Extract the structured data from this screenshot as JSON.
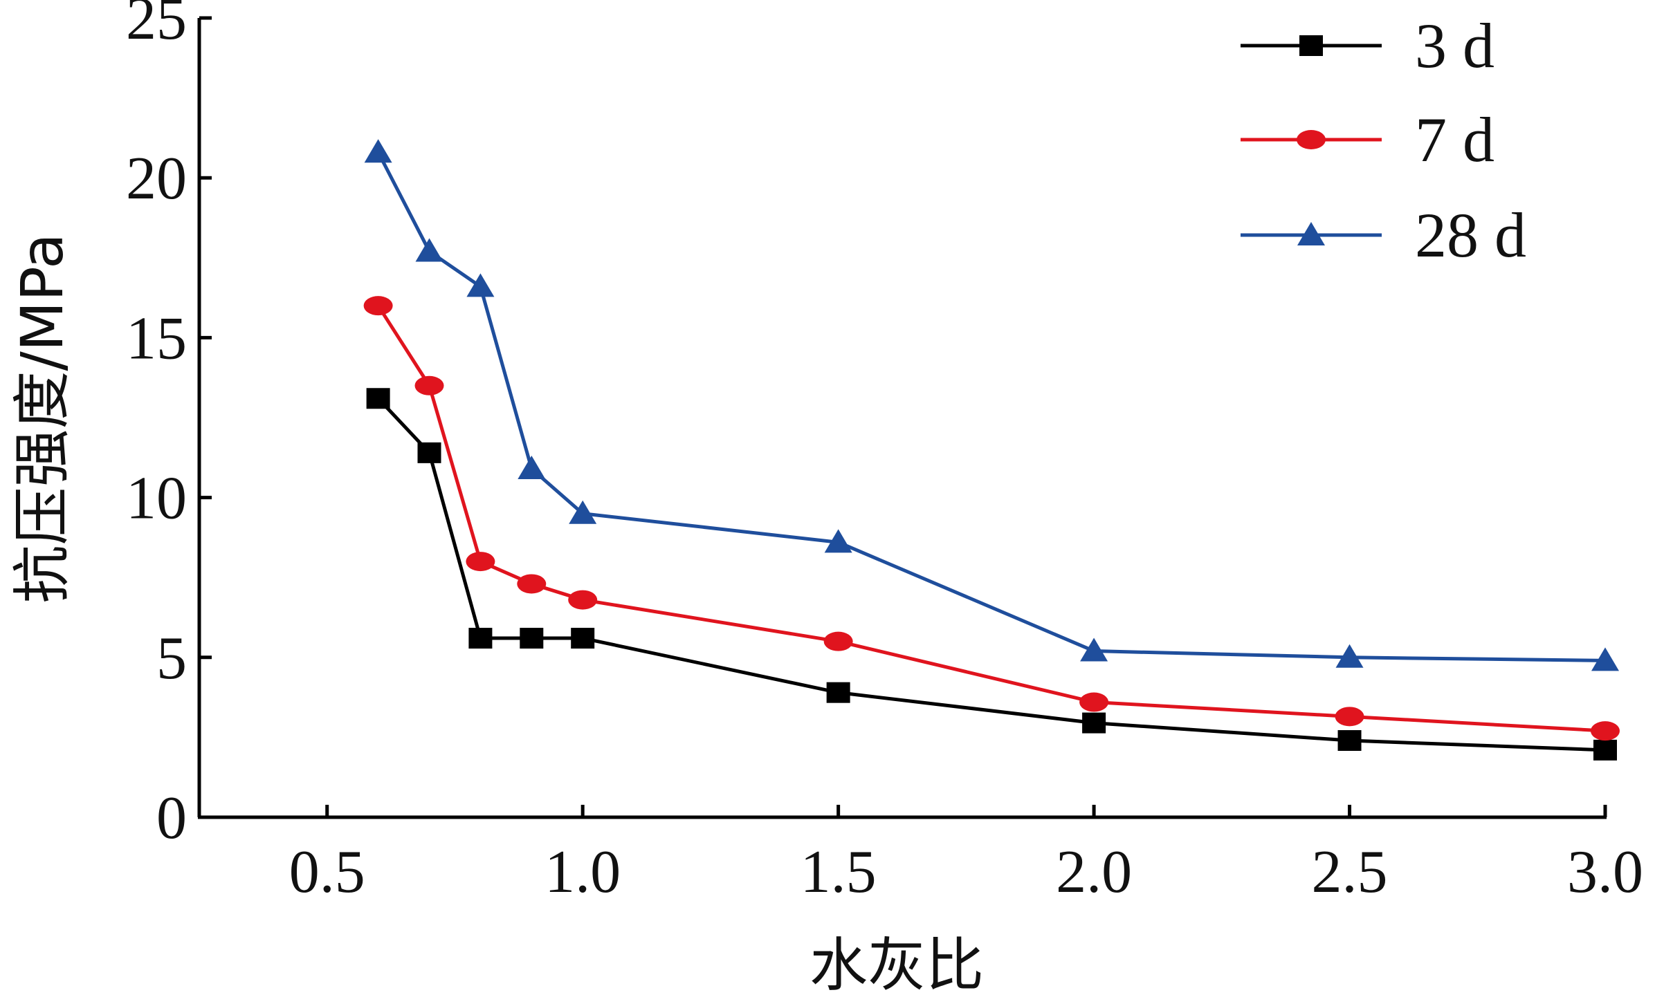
{
  "chart_data": {
    "type": "line",
    "title": "",
    "xlabel": "水灰比",
    "ylabel": "抗压强度/MPa",
    "xlim": [
      0.25,
      3.0
    ],
    "ylim": [
      0,
      25
    ],
    "x_ticks": [
      "0.5",
      "1.0",
      "1.5",
      "2.0",
      "2.5",
      "3.0"
    ],
    "y_ticks": [
      "0",
      "5",
      "10",
      "15",
      "20",
      "25"
    ],
    "grid": false,
    "legend_position": "top-right",
    "x": [
      0.6,
      0.7,
      0.8,
      0.9,
      1.0,
      1.5,
      2.0,
      2.5,
      3.0
    ],
    "series": [
      {
        "name": "3 d",
        "color": "#000000",
        "marker": "square",
        "values": [
          13.1,
          11.4,
          5.6,
          5.6,
          5.6,
          3.9,
          2.95,
          2.4,
          2.1
        ]
      },
      {
        "name": "7 d",
        "color": "#e0141e",
        "marker": "circle",
        "values": [
          16.0,
          13.5,
          8.0,
          7.3,
          6.8,
          5.5,
          3.6,
          3.15,
          2.7
        ]
      },
      {
        "name": "28 d",
        "color": "#1f4e9c",
        "marker": "triangle",
        "values": [
          20.8,
          17.7,
          16.6,
          10.9,
          9.5,
          8.6,
          5.2,
          5.0,
          4.9
        ]
      }
    ]
  }
}
